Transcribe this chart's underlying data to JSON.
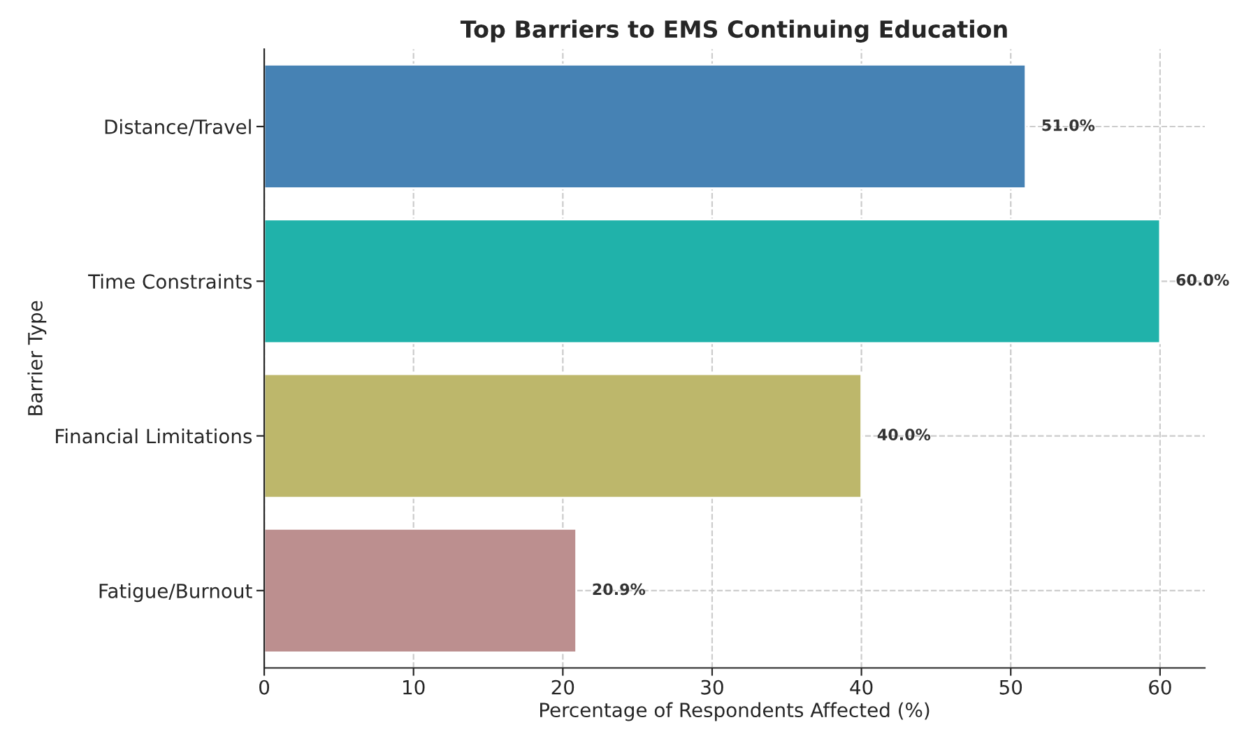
{
  "chart_data": {
    "type": "bar",
    "orientation": "horizontal",
    "title": "Top Barriers to EMS Continuing Education",
    "xlabel": "Percentage of Respondents Affected (%)",
    "ylabel": "Barrier Type",
    "categories": [
      "Distance/Travel",
      "Time Constraints",
      "Financial Limitations",
      "Fatigue/Burnout"
    ],
    "values": [
      51.0,
      60.0,
      40.0,
      20.9
    ],
    "colors": [
      "#4682b4",
      "#20b2aa",
      "#bdb76b",
      "#bc8f8f"
    ],
    "value_labels": [
      "51.0%",
      "60.0%",
      "40.0%",
      "20.9%"
    ],
    "xlim": [
      0,
      63
    ],
    "xticks": [
      0,
      10,
      20,
      30,
      40,
      50,
      60
    ],
    "grid": true,
    "legend": false
  }
}
